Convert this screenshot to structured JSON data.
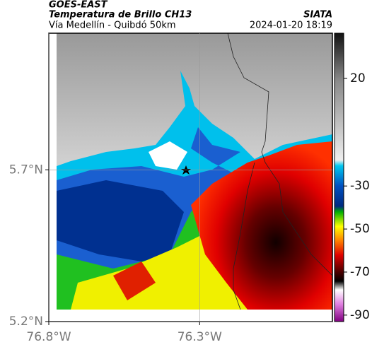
{
  "header": {
    "source": "GOES-EAST",
    "product": "Temperatura de Brillo CH13",
    "region": "Vía Medellín - Quibdó 50km",
    "agency": "SIATA",
    "timestamp": "2024-01-20 18:19"
  },
  "map": {
    "xlim": [
      -76.8,
      -75.86
    ],
    "ylim": [
      5.2,
      6.15
    ],
    "xticks": [
      {
        "value": -76.8,
        "label": "76.8°W"
      },
      {
        "value": -76.3,
        "label": "76.3°W"
      }
    ],
    "yticks": [
      {
        "value": 5.7,
        "label": "5.7°N"
      },
      {
        "value": 5.2,
        "label": "5.2°N"
      }
    ]
  },
  "colorbar": {
    "lim": [
      -93,
      41
    ],
    "ticks": [
      20,
      -30,
      -50,
      -70,
      -90
    ]
  }
}
